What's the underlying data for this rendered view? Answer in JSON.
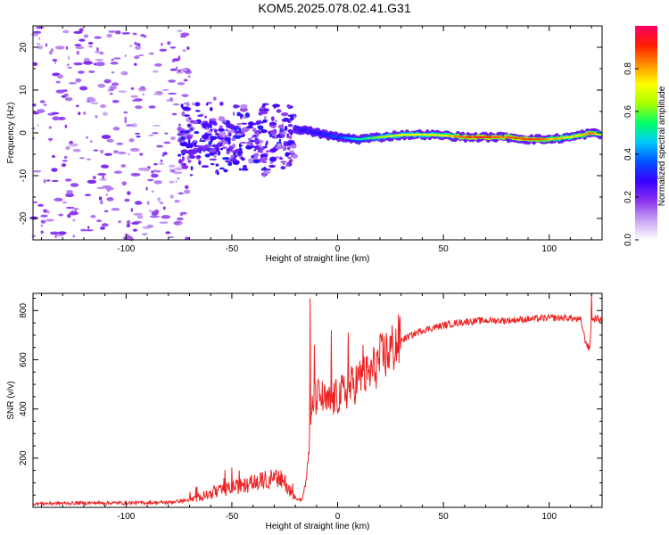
{
  "title": "KOM5.2025.078.02.41.G31",
  "chart_data": [
    {
      "type": "heatmap",
      "title": "KOM5.2025.078.02.41.G31",
      "xlabel": "Height of straight line (km)",
      "ylabel": "Frequency (Hz)",
      "xlim": [
        -144,
        125
      ],
      "ylim": [
        -25,
        25
      ],
      "xticks": [
        -100,
        -50,
        0,
        50,
        100
      ],
      "yticks": [
        -20,
        -10,
        0,
        10,
        20
      ],
      "grid": false,
      "colorbar": {
        "label": "Normalized spectral amplitude",
        "range": [
          0,
          1
        ],
        "ticks": [
          0.0,
          0.2,
          0.4,
          0.6,
          0.8
        ],
        "colormap": [
          "#ffffff",
          "#c9a3f2",
          "#8a34f0",
          "#3a00ff",
          "#0050ff",
          "#00c8ff",
          "#00ff66",
          "#a8ff00",
          "#ffff00",
          "#ff9000",
          "#ff1e00",
          "#ff0066"
        ]
      },
      "features": {
        "scattered_noise_km": [
          -144,
          -70
        ],
        "noise_frequency_span_hz": [
          -25,
          25
        ],
        "transition_cluster_km": [
          -75,
          -20
        ],
        "transition_frequency_span_hz": [
          -13,
          10
        ],
        "tone_track": [
          {
            "x": -20,
            "y": 1.0,
            "amp": 0.25
          },
          {
            "x": -10,
            "y": 0.0,
            "amp": 0.28
          },
          {
            "x": 0,
            "y": -1.0,
            "amp": 0.35
          },
          {
            "x": 10,
            "y": -1.5,
            "amp": 0.5
          },
          {
            "x": 20,
            "y": -1.0,
            "amp": 0.62
          },
          {
            "x": 30,
            "y": -0.5,
            "amp": 0.7
          },
          {
            "x": 40,
            "y": -0.4,
            "amp": 0.7
          },
          {
            "x": 50,
            "y": -0.6,
            "amp": 0.72
          },
          {
            "x": 60,
            "y": -1.0,
            "amp": 0.88
          },
          {
            "x": 70,
            "y": -1.0,
            "amp": 0.9
          },
          {
            "x": 80,
            "y": -1.0,
            "amp": 0.85
          },
          {
            "x": 90,
            "y": -1.5,
            "amp": 0.9
          },
          {
            "x": 100,
            "y": -1.5,
            "amp": 0.8
          },
          {
            "x": 110,
            "y": -1.0,
            "amp": 0.72
          },
          {
            "x": 120,
            "y": 0.0,
            "amp": 0.85
          },
          {
            "x": 125,
            "y": -0.5,
            "amp": 0.6
          }
        ]
      }
    },
    {
      "type": "line",
      "xlabel": "Height of straight line (km)",
      "ylabel": "SNR (v/v)",
      "xlim": [
        -144,
        125
      ],
      "ylim": [
        0,
        870
      ],
      "xticks": [
        -100,
        -50,
        0,
        50,
        100
      ],
      "yticks": [
        200,
        400,
        600,
        800
      ],
      "grid": false,
      "color": "#ee2222",
      "series": [
        {
          "x": [
            -144,
            -120,
            -100,
            -80,
            -70,
            -60,
            -50,
            -40,
            -35,
            -30,
            -25,
            -20,
            -17,
            -15,
            -12,
            -10,
            -8,
            -5,
            0,
            5,
            10,
            15,
            20,
            25,
            30,
            40,
            50,
            60,
            70,
            80,
            90,
            100,
            110,
            115,
            117,
            119,
            120,
            122,
            125
          ],
          "values": [
            15,
            18,
            18,
            20,
            30,
            55,
            80,
            95,
            110,
            120,
            100,
            40,
            30,
            100,
            400,
            450,
            450,
            420,
            450,
            480,
            520,
            540,
            600,
            640,
            680,
            720,
            740,
            755,
            760,
            760,
            765,
            770,
            770,
            760,
            680,
            640,
            760,
            770,
            760
          ],
          "peaks": [
            {
              "x": -13,
              "y": 850
            },
            {
              "x": -11,
              "y": 660
            },
            {
              "x": -3,
              "y": 720
            },
            {
              "x": 5,
              "y": 710
            },
            {
              "x": 12,
              "y": 660
            },
            {
              "x": 120,
              "y": 870
            }
          ]
        }
      ]
    }
  ]
}
